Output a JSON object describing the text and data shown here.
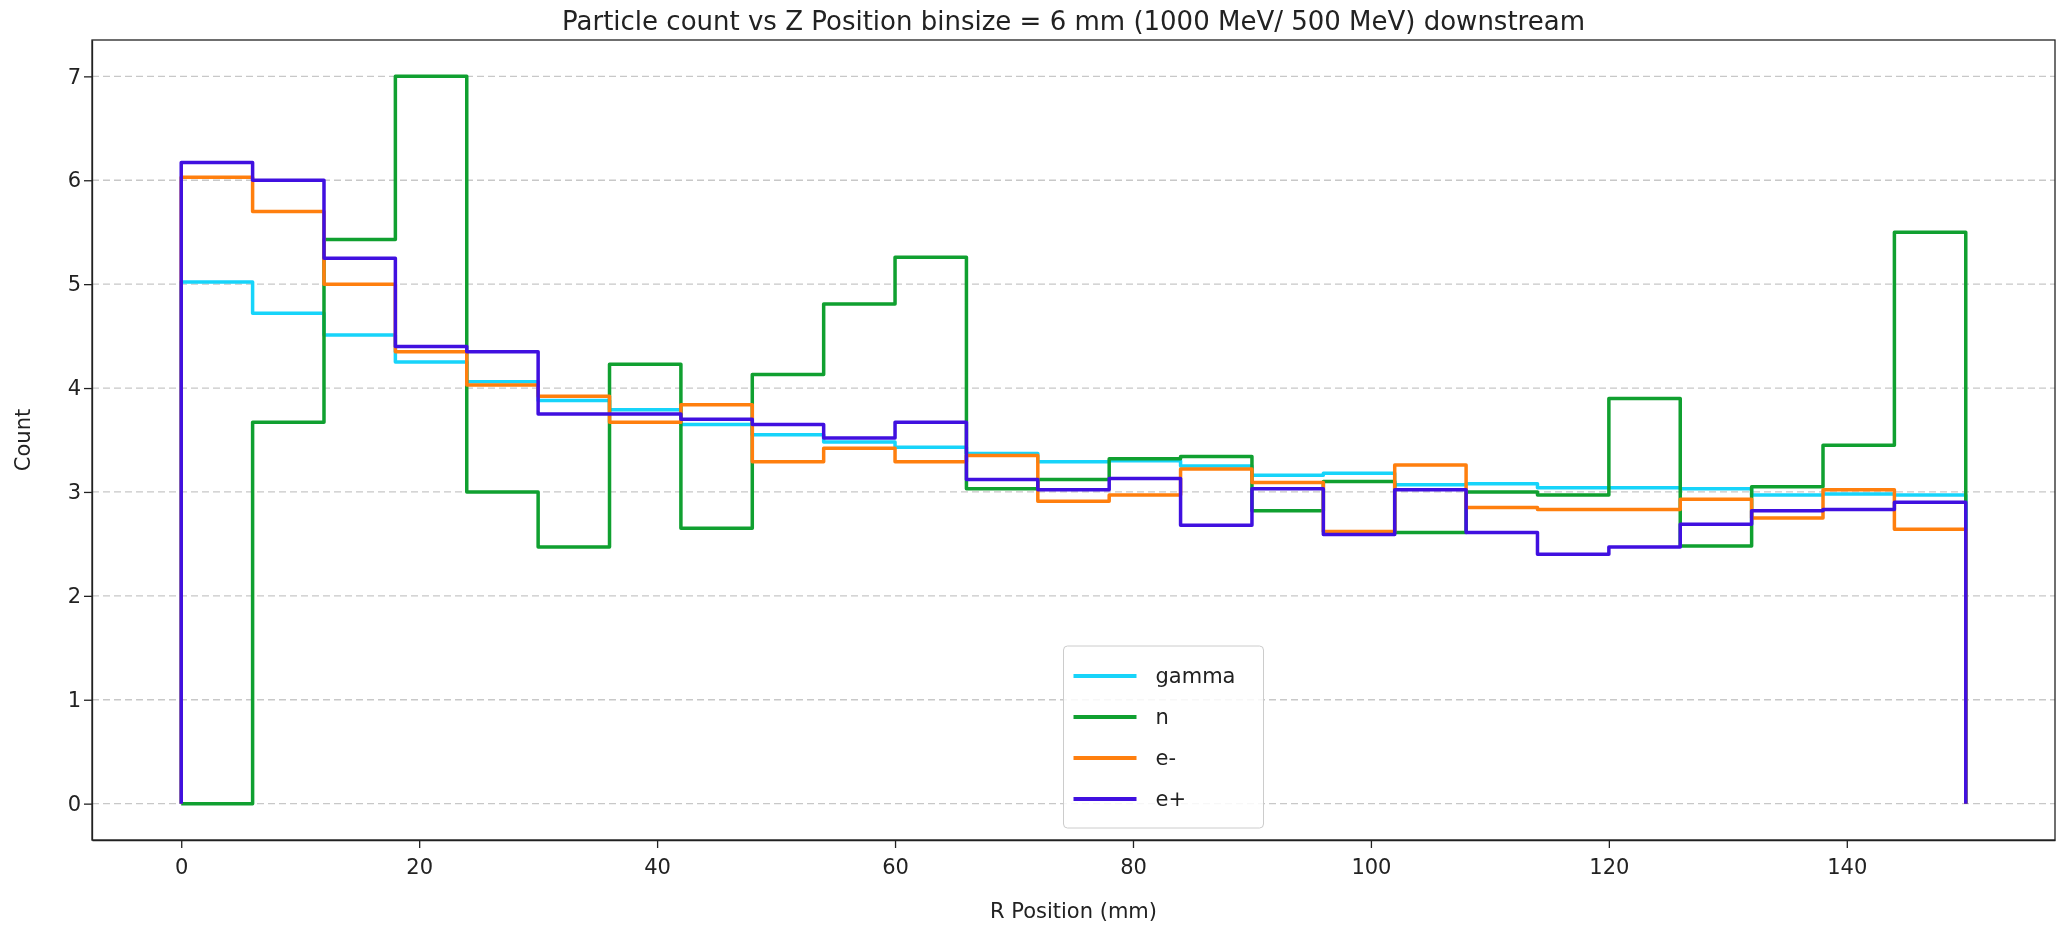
{
  "chart_data": {
    "type": "histogram",
    "title": "Particle count vs Z Position binsize = 6 mm (1000 MeV/ 500 MeV) downstream",
    "xlabel": "R Position (mm)",
    "ylabel": "Count",
    "bins": [
      0,
      6,
      12,
      18,
      24,
      30,
      36,
      42,
      48,
      54,
      60,
      66,
      72,
      78,
      84,
      90,
      96,
      102,
      108,
      114,
      120,
      126,
      132,
      138,
      144,
      150
    ],
    "series": [
      {
        "name": "gamma",
        "color": "#17d4fa",
        "values": [
          5.02,
          4.72,
          4.51,
          4.25,
          4.06,
          3.88,
          3.79,
          3.65,
          3.55,
          3.48,
          3.43,
          3.37,
          3.29,
          3.3,
          3.25,
          3.16,
          3.18,
          3.07,
          3.08,
          3.04,
          3.04,
          3.03,
          2.97,
          2.98,
          2.97
        ]
      },
      {
        "name": "n",
        "color": "#10a030",
        "values": [
          0,
          3.67,
          5.43,
          7,
          3,
          2.47,
          4.23,
          2.65,
          4.13,
          4.81,
          5.26,
          3.03,
          3.12,
          3.32,
          3.34,
          2.82,
          3.1,
          2.61,
          3,
          2.97,
          3.9,
          2.48,
          3.05,
          3.45,
          5.5
        ]
      },
      {
        "name": "e-",
        "color": "#ff7f0e",
        "values": [
          6.03,
          5.7,
          5,
          4.35,
          4.03,
          3.92,
          3.67,
          3.84,
          3.29,
          3.42,
          3.29,
          3.35,
          2.91,
          2.97,
          3.22,
          3.09,
          2.62,
          3.26,
          2.85,
          2.83,
          2.83,
          2.93,
          2.75,
          3.02,
          2.64
        ]
      },
      {
        "name": "e+",
        "color": "#4010e0",
        "values": [
          6.17,
          6,
          5.25,
          4.4,
          4.35,
          3.75,
          3.75,
          3.7,
          3.65,
          3.52,
          3.67,
          3.12,
          3.02,
          3.13,
          2.68,
          3.03,
          2.59,
          3.02,
          2.61,
          2.4,
          2.47,
          2.69,
          2.82,
          2.83,
          2.9
        ]
      }
    ],
    "xlim": [
      -7.5,
      157.5
    ],
    "xticks": [
      0,
      20,
      40,
      60,
      80,
      100,
      120,
      140
    ],
    "ylim": [
      -0.35,
      7.35
    ],
    "yticks": [
      0,
      1,
      2,
      3,
      4,
      5,
      6,
      7
    ],
    "grid": "y",
    "legend": "bottom"
  }
}
